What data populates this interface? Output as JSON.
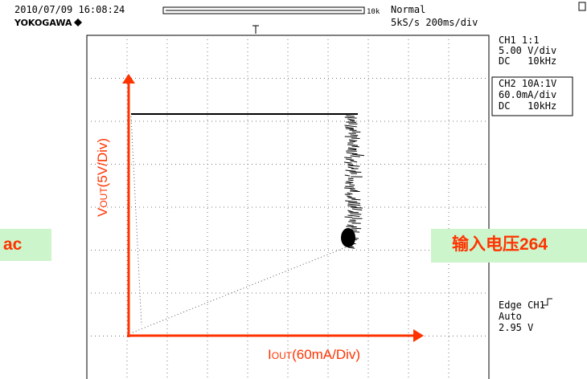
{
  "header": {
    "datetime": "2010/07/09 16:08:24",
    "brand": "YOKOGAWA",
    "record_length": "10k",
    "mode": "Normal",
    "timebase": "5kS/s 200ms/div"
  },
  "channels": [
    {
      "name": "CH1 1:1",
      "scale": "5.00 V/div",
      "coupling": "DC   10kHz"
    },
    {
      "name": "CH2 10A:1V",
      "scale": "60.0mA/div",
      "coupling": "DC   10kHz"
    }
  ],
  "trigger": {
    "source": "Edge CH1",
    "mode": "Auto",
    "level": "2.95 V"
  },
  "axes": {
    "y_label": {
      "main": "V",
      "sub": "OUT",
      "rest": "(5V/Div)"
    },
    "x_label": {
      "main": "I",
      "sub": "OUT",
      "rest": "(60mA/Div)"
    }
  },
  "notes": {
    "left": "ac",
    "right": "输入电压264"
  }
}
